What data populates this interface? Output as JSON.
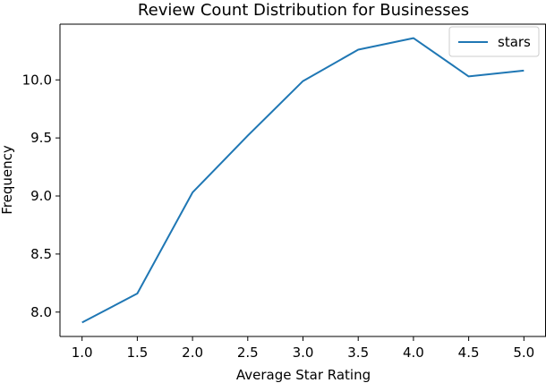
{
  "chart_data": {
    "type": "line",
    "title": "Review Count Distribution for Businesses",
    "xlabel": "Average Star Rating",
    "ylabel": "Frequency",
    "x": [
      1.0,
      1.5,
      2.0,
      2.5,
      3.0,
      3.5,
      4.0,
      4.5,
      5.0
    ],
    "series": [
      {
        "name": "stars",
        "color": "#1f77b4",
        "values": [
          7.91,
          8.16,
          9.03,
          9.52,
          9.99,
          10.26,
          10.36,
          10.03,
          10.08
        ]
      }
    ],
    "xlim": [
      0.8,
      5.2
    ],
    "ylim": [
      7.79,
      10.48
    ],
    "xticks": [
      "1.0",
      "1.5",
      "2.0",
      "2.5",
      "3.0",
      "3.5",
      "4.0",
      "4.5",
      "5.0"
    ],
    "yticks": [
      "8.0",
      "8.5",
      "9.0",
      "9.5",
      "10.0"
    ],
    "grid": false,
    "legend_position": "top-right"
  }
}
